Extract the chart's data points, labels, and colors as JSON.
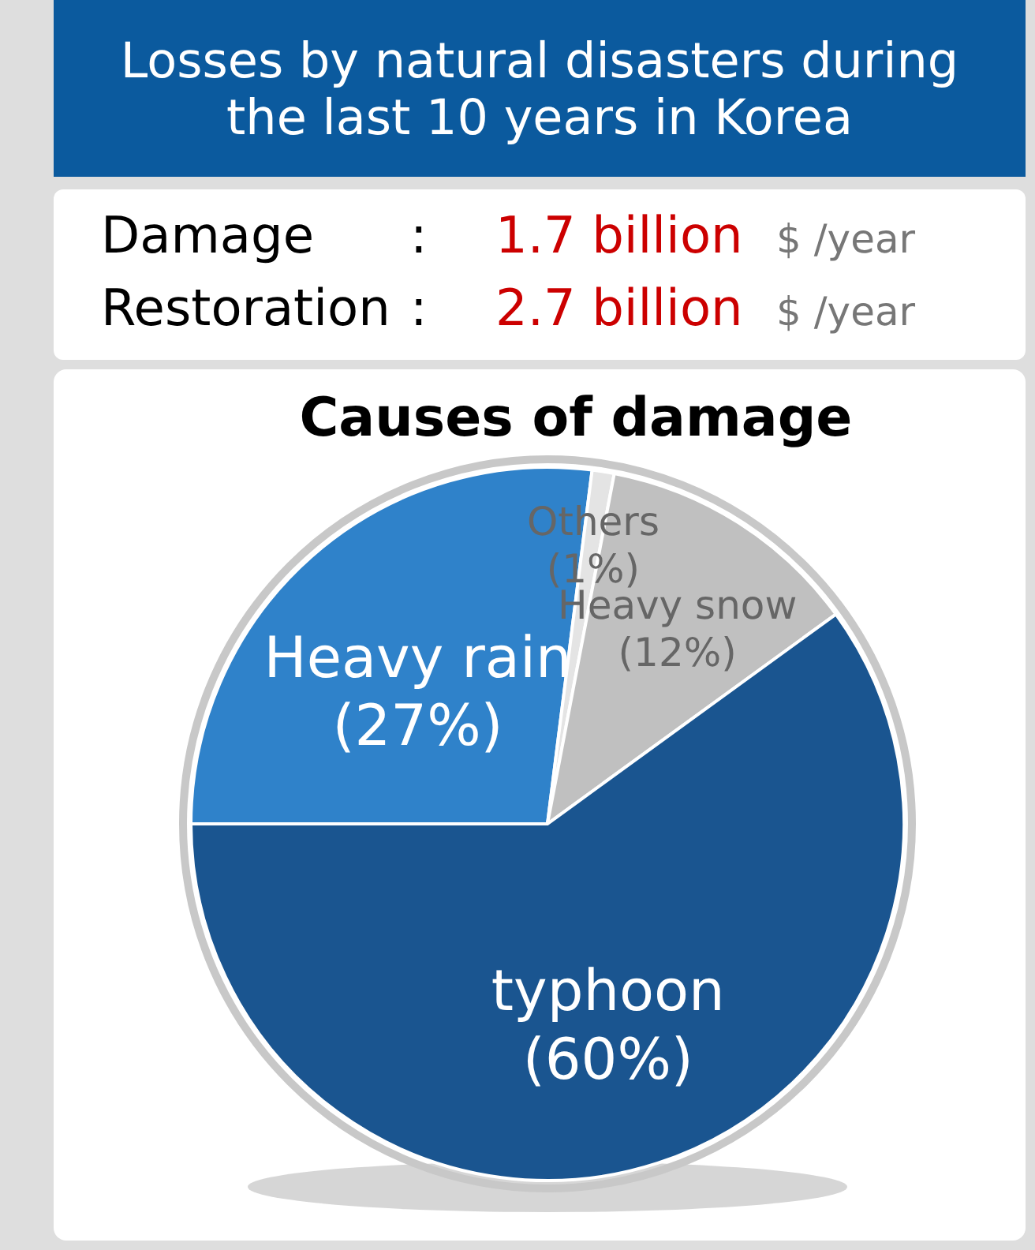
{
  "chart_data": {
    "type": "pie",
    "title": "Losses by natural disasters during\nthe last 10 years in Korea",
    "subtitle": "Causes of damage",
    "annotations": [
      "Damage",
      ":",
      "1.7 billion",
      "$ /year",
      "Restoration",
      ":",
      "2.7 billion",
      "$ /year"
    ],
    "categories": [
      "Heavy rain",
      "Others",
      "Heavy snow",
      "typhoon"
    ],
    "values": [
      27,
      1,
      12,
      60
    ],
    "colors": [
      "#2f82ca",
      "#e4e4e4",
      "#c0c0c0",
      "#1a5590"
    ],
    "value_labels": [
      "(27%)",
      "(1%)",
      "(12%)",
      "(60%)"
    ]
  }
}
